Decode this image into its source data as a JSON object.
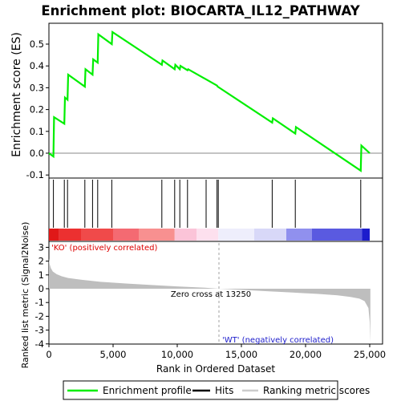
{
  "chart_data": {
    "title": "Enrichment plot: BIOCARTA_IL12_PATHWAY",
    "colors": {
      "es_line": "#00ee00",
      "hits": "#000000",
      "metric_fill": "#bebebe",
      "zero_cross_line": "#a0a0a0",
      "pos_label": "#dd0000",
      "neg_label": "#2020cc"
    },
    "panels": [
      {
        "name": "enrichment",
        "type": "line",
        "ylabel": "Enrichment score (ES)",
        "ylim": [
          -0.1,
          0.55
        ],
        "yticks": [
          "-0.1",
          "0.0",
          "0.1",
          "0.2",
          "0.3",
          "0.4",
          "0.5"
        ],
        "ytick_values": [
          -0.1,
          0.0,
          0.1,
          0.2,
          0.3,
          0.4,
          0.5
        ],
        "series": [
          {
            "name": "Enrichment profile",
            "x": [
              0,
              350,
              400,
              1200,
              1250,
              1450,
              1500,
              2800,
              2850,
              3400,
              3450,
              3800,
              3850,
              4900,
              4950,
              8800,
              8850,
              9800,
              9850,
              10200,
              10250,
              10800,
              10850,
              13100,
              13150,
              17400,
              17450,
              19200,
              19250,
              24300,
              24350,
              25000
            ],
            "y": [
              0.0,
              -0.015,
              0.165,
              0.135,
              0.255,
              0.245,
              0.36,
              0.305,
              0.385,
              0.36,
              0.43,
              0.415,
              0.545,
              0.5,
              0.555,
              0.405,
              0.425,
              0.385,
              0.405,
              0.385,
              0.4,
              0.38,
              0.385,
              0.31,
              0.305,
              0.14,
              0.16,
              0.09,
              0.12,
              -0.08,
              0.035,
              0.0
            ]
          }
        ]
      },
      {
        "name": "hits",
        "type": "hits",
        "positions": [
          350,
          1200,
          1450,
          2800,
          3400,
          3800,
          4900,
          8800,
          9800,
          10200,
          10800,
          12250,
          13100,
          13200,
          17400,
          19200,
          24300
        ]
      },
      {
        "name": "ranking",
        "type": "area",
        "ylabel": "Ranked list metric (Signal2Noise)",
        "xlabel": "Rank in Ordered Dataset",
        "xlim": [
          0,
          26000
        ],
        "xticks": [
          "0",
          "5,000",
          "10,000",
          "15,000",
          "20,000",
          "25,000"
        ],
        "xtick_values": [
          0,
          5000,
          10000,
          15000,
          20000,
          25000
        ],
        "ylim": [
          -4,
          3
        ],
        "yticks": [
          "-4",
          "-3",
          "-2",
          "-1",
          "0",
          "1",
          "2",
          "3"
        ],
        "ytick_values": [
          -4,
          -3,
          -2,
          -1,
          0,
          1,
          2,
          3
        ],
        "x": [
          0,
          50,
          150,
          300,
          600,
          1000,
          1500,
          2500,
          4000,
          6000,
          8000,
          10000,
          12000,
          13250,
          15000,
          17000,
          19000,
          21000,
          22500,
          23500,
          24200,
          24600,
          24900,
          25000,
          25050
        ],
        "values": [
          2.2,
          1.8,
          1.5,
          1.25,
          1.05,
          0.9,
          0.78,
          0.65,
          0.5,
          0.38,
          0.27,
          0.17,
          0.08,
          0.0,
          -0.08,
          -0.18,
          -0.28,
          -0.38,
          -0.48,
          -0.6,
          -0.72,
          -0.9,
          -1.4,
          -2.4,
          -3.9
        ],
        "zero_cross": "Zero cross at 13250",
        "pos_label": "'KO' (positively correlated)",
        "neg_label": "'WT' (negatively correlated)"
      }
    ],
    "legend": {
      "placement": "bottom",
      "entries": [
        "Enrichment profile",
        "Hits",
        "Ranking metric scores"
      ]
    }
  }
}
